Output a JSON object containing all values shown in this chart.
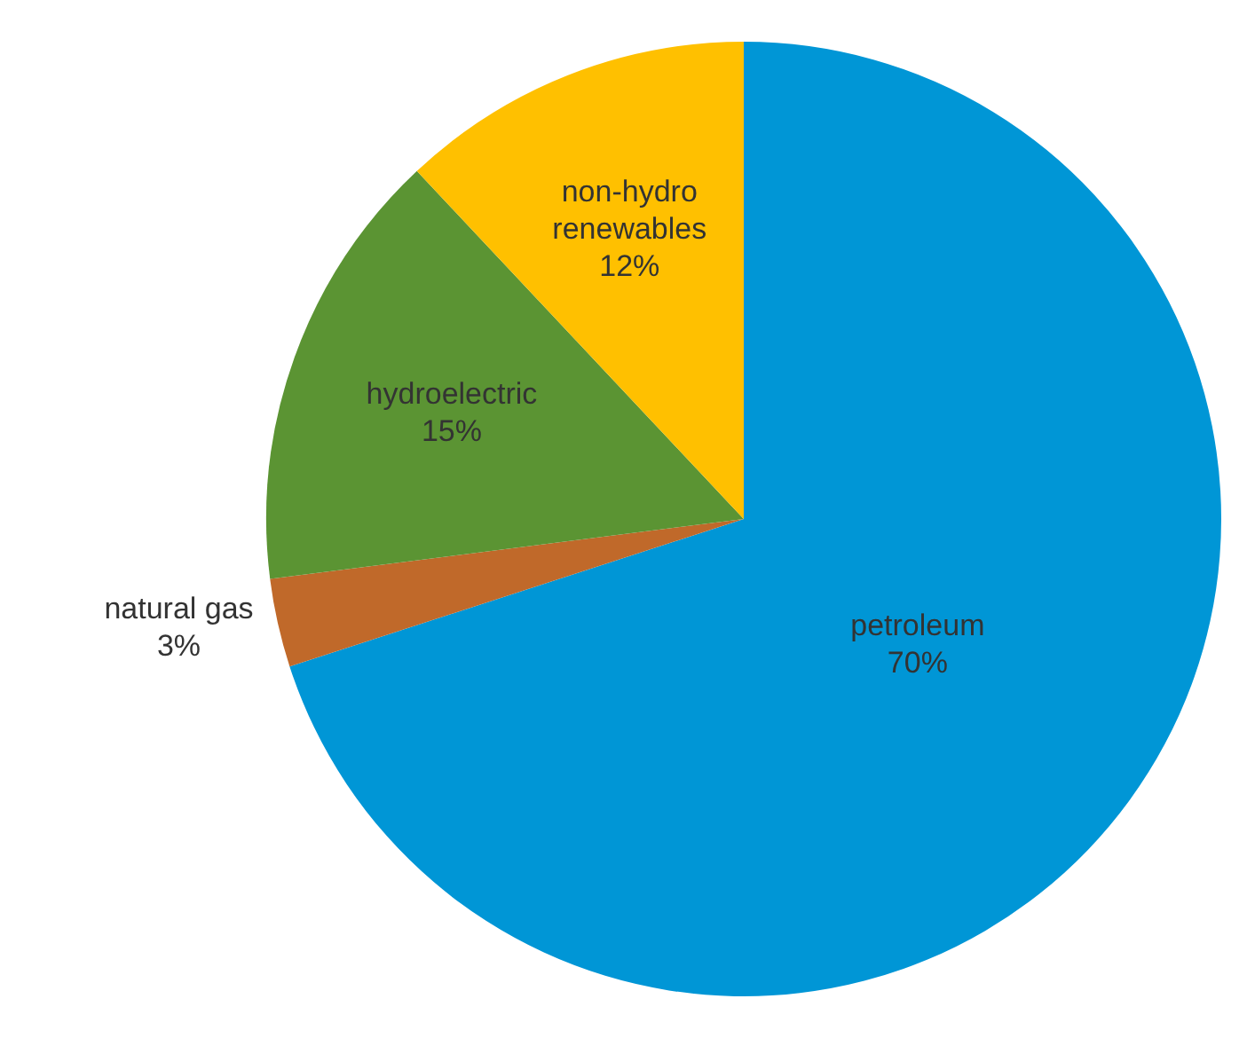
{
  "chart_data": {
    "type": "pie",
    "categories": [
      "petroleum",
      "natural gas",
      "hydroelectric",
      "non-hydro renewables"
    ],
    "values": [
      70,
      3,
      15,
      12
    ],
    "value_labels": [
      "70%",
      "3%",
      "15%",
      "12%"
    ],
    "colors": [
      "#0096d6",
      "#c0692a",
      "#5b9433",
      "#ffc000"
    ],
    "legend": false
  }
}
